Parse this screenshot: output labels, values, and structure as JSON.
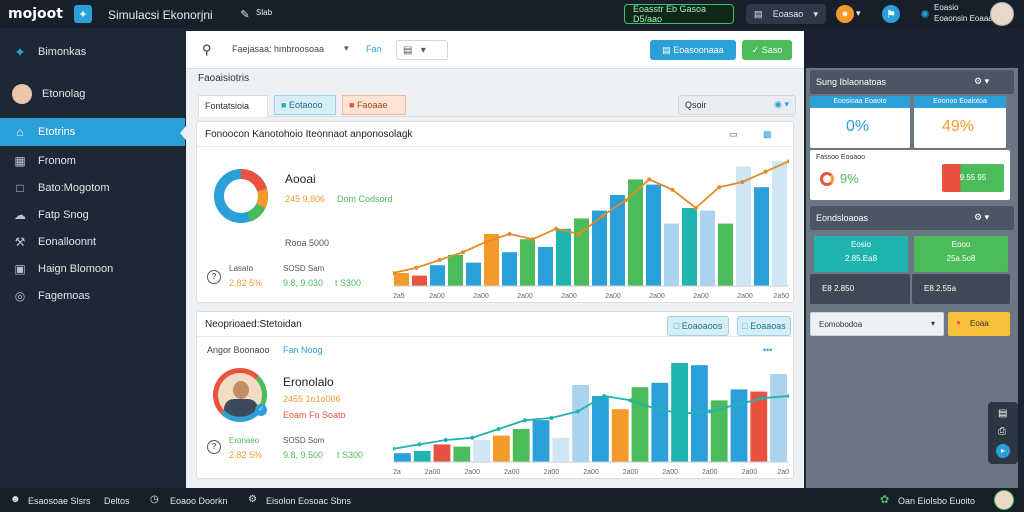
{
  "topbar": {
    "logo": "mojoot",
    "app_title": "Simulacsi Ekonorjni",
    "small_label": "Slab",
    "status_pill": "Eoasstr Eb Gasoa D5/aao",
    "dropdown": "Eoasao",
    "user_name": "Eoasio",
    "user_sub": "Eoaonsin Eoaaa"
  },
  "sidebar": {
    "items": [
      {
        "label": "Bimonkas",
        "icon": "bird-icon"
      },
      {
        "label": "Etonolag",
        "icon": "avatar-icon"
      },
      {
        "label": "Etotrins",
        "icon": "home-icon",
        "active": true
      },
      {
        "label": "Fronom",
        "icon": "grid-icon"
      },
      {
        "label": "Bato:Mogotom",
        "icon": "folder-icon"
      },
      {
        "label": "Fatp Snog",
        "icon": "cloud-icon"
      },
      {
        "label": "Eonalloonnt",
        "icon": "wrench-icon"
      },
      {
        "label": "Haign Blomoon",
        "icon": "calendar-icon"
      },
      {
        "label": "Fagemoas",
        "icon": "globe-icon"
      }
    ]
  },
  "main": {
    "search_value": "Faejasaa: hmbroosoaa",
    "search_tag": "Fan",
    "btn_primary": "Eoasoonaaa",
    "btn_green": "Saso",
    "section_label": "Faoaisiotris",
    "tabs": [
      "Fontatsioia",
      "Eotaooo",
      "Faoaae"
    ],
    "filter_label": "Qsoir",
    "panel1": {
      "title": "Fonoocon Kanotohoio Iteonnaot anponosolagk",
      "donut_title": "Aooai",
      "donut_value": "245 9,806",
      "donut_value_note": "Dom Codsord",
      "donut_sub": "Rooa  5000",
      "stat_label_a": "Lasato",
      "stat_value_a": "2.82 5%",
      "stat_label_b": "SOSD Sam",
      "stat_value_b": "9.8, 9.030",
      "stat_value_c": "t S300",
      "axis_labels": [
        "2a5",
        "2a00",
        "2a00",
        "2a00",
        "2a00",
        "2a00",
        "2a00",
        "2a00",
        "2a00",
        "2a50"
      ]
    },
    "panel2": {
      "title": "Neoprioaed:Stetoidan",
      "btn_a": "Eoaoaoos",
      "btn_b": "Eoaaoas",
      "row_label": "Angor Boonaoo",
      "row_value": "Fan Noog",
      "person_title": "Eronolalo",
      "person_value": "2455  1o1o006",
      "person_sub": "Eoam  Fo Soato",
      "stat_label_a": "Eronaeo",
      "stat_value_a": "2.82 5%",
      "stat_label_b": "SOSD Som",
      "stat_value_b": "9.8, 9.500",
      "stat_value_c": "t S300",
      "axis_labels": [
        "2a",
        "2a00",
        "2a00",
        "2a00",
        "2a00",
        "2a00",
        "2a00",
        "2a00",
        "2a00",
        "2a00",
        "2a0"
      ]
    }
  },
  "right": {
    "header1": "Sung Iblaonatoas",
    "kpi1_label": "Eoosioaa Eoaoto",
    "kpi1_value": "0%",
    "kpi2_label": "Eoonoo Eoalotoa",
    "kpi2_value": "49%",
    "kpi3_label": "Fassoo Eooaoo",
    "kpi3_value": "9%",
    "kpi3_badge": "9.55 95",
    "header2": "Eondsloaoas",
    "tile1_label": "Eosio",
    "tile1_value": "2.85.Ea8",
    "tile2_label": "Eooo",
    "tile2_value": "25a.5o8",
    "footer_a": "E8 2.850",
    "footer_b": "E8.2.55a",
    "select_label": "Eomobodoa",
    "select_btn": "Eoaa"
  },
  "bottombar": {
    "items": [
      "Esaosoae Slsrs",
      "Deltos",
      "Eoaoo Doorkn",
      "Eisolon Eosoac Sbns"
    ],
    "right_label": "Oan Eiolsbo Euoito"
  },
  "colors": {
    "accent": "#2a9fd8",
    "green": "#4cbb5a",
    "orange": "#f39a2b",
    "teal": "#1fb4b0",
    "red": "#e8523e",
    "line": "#e48b26"
  }
}
